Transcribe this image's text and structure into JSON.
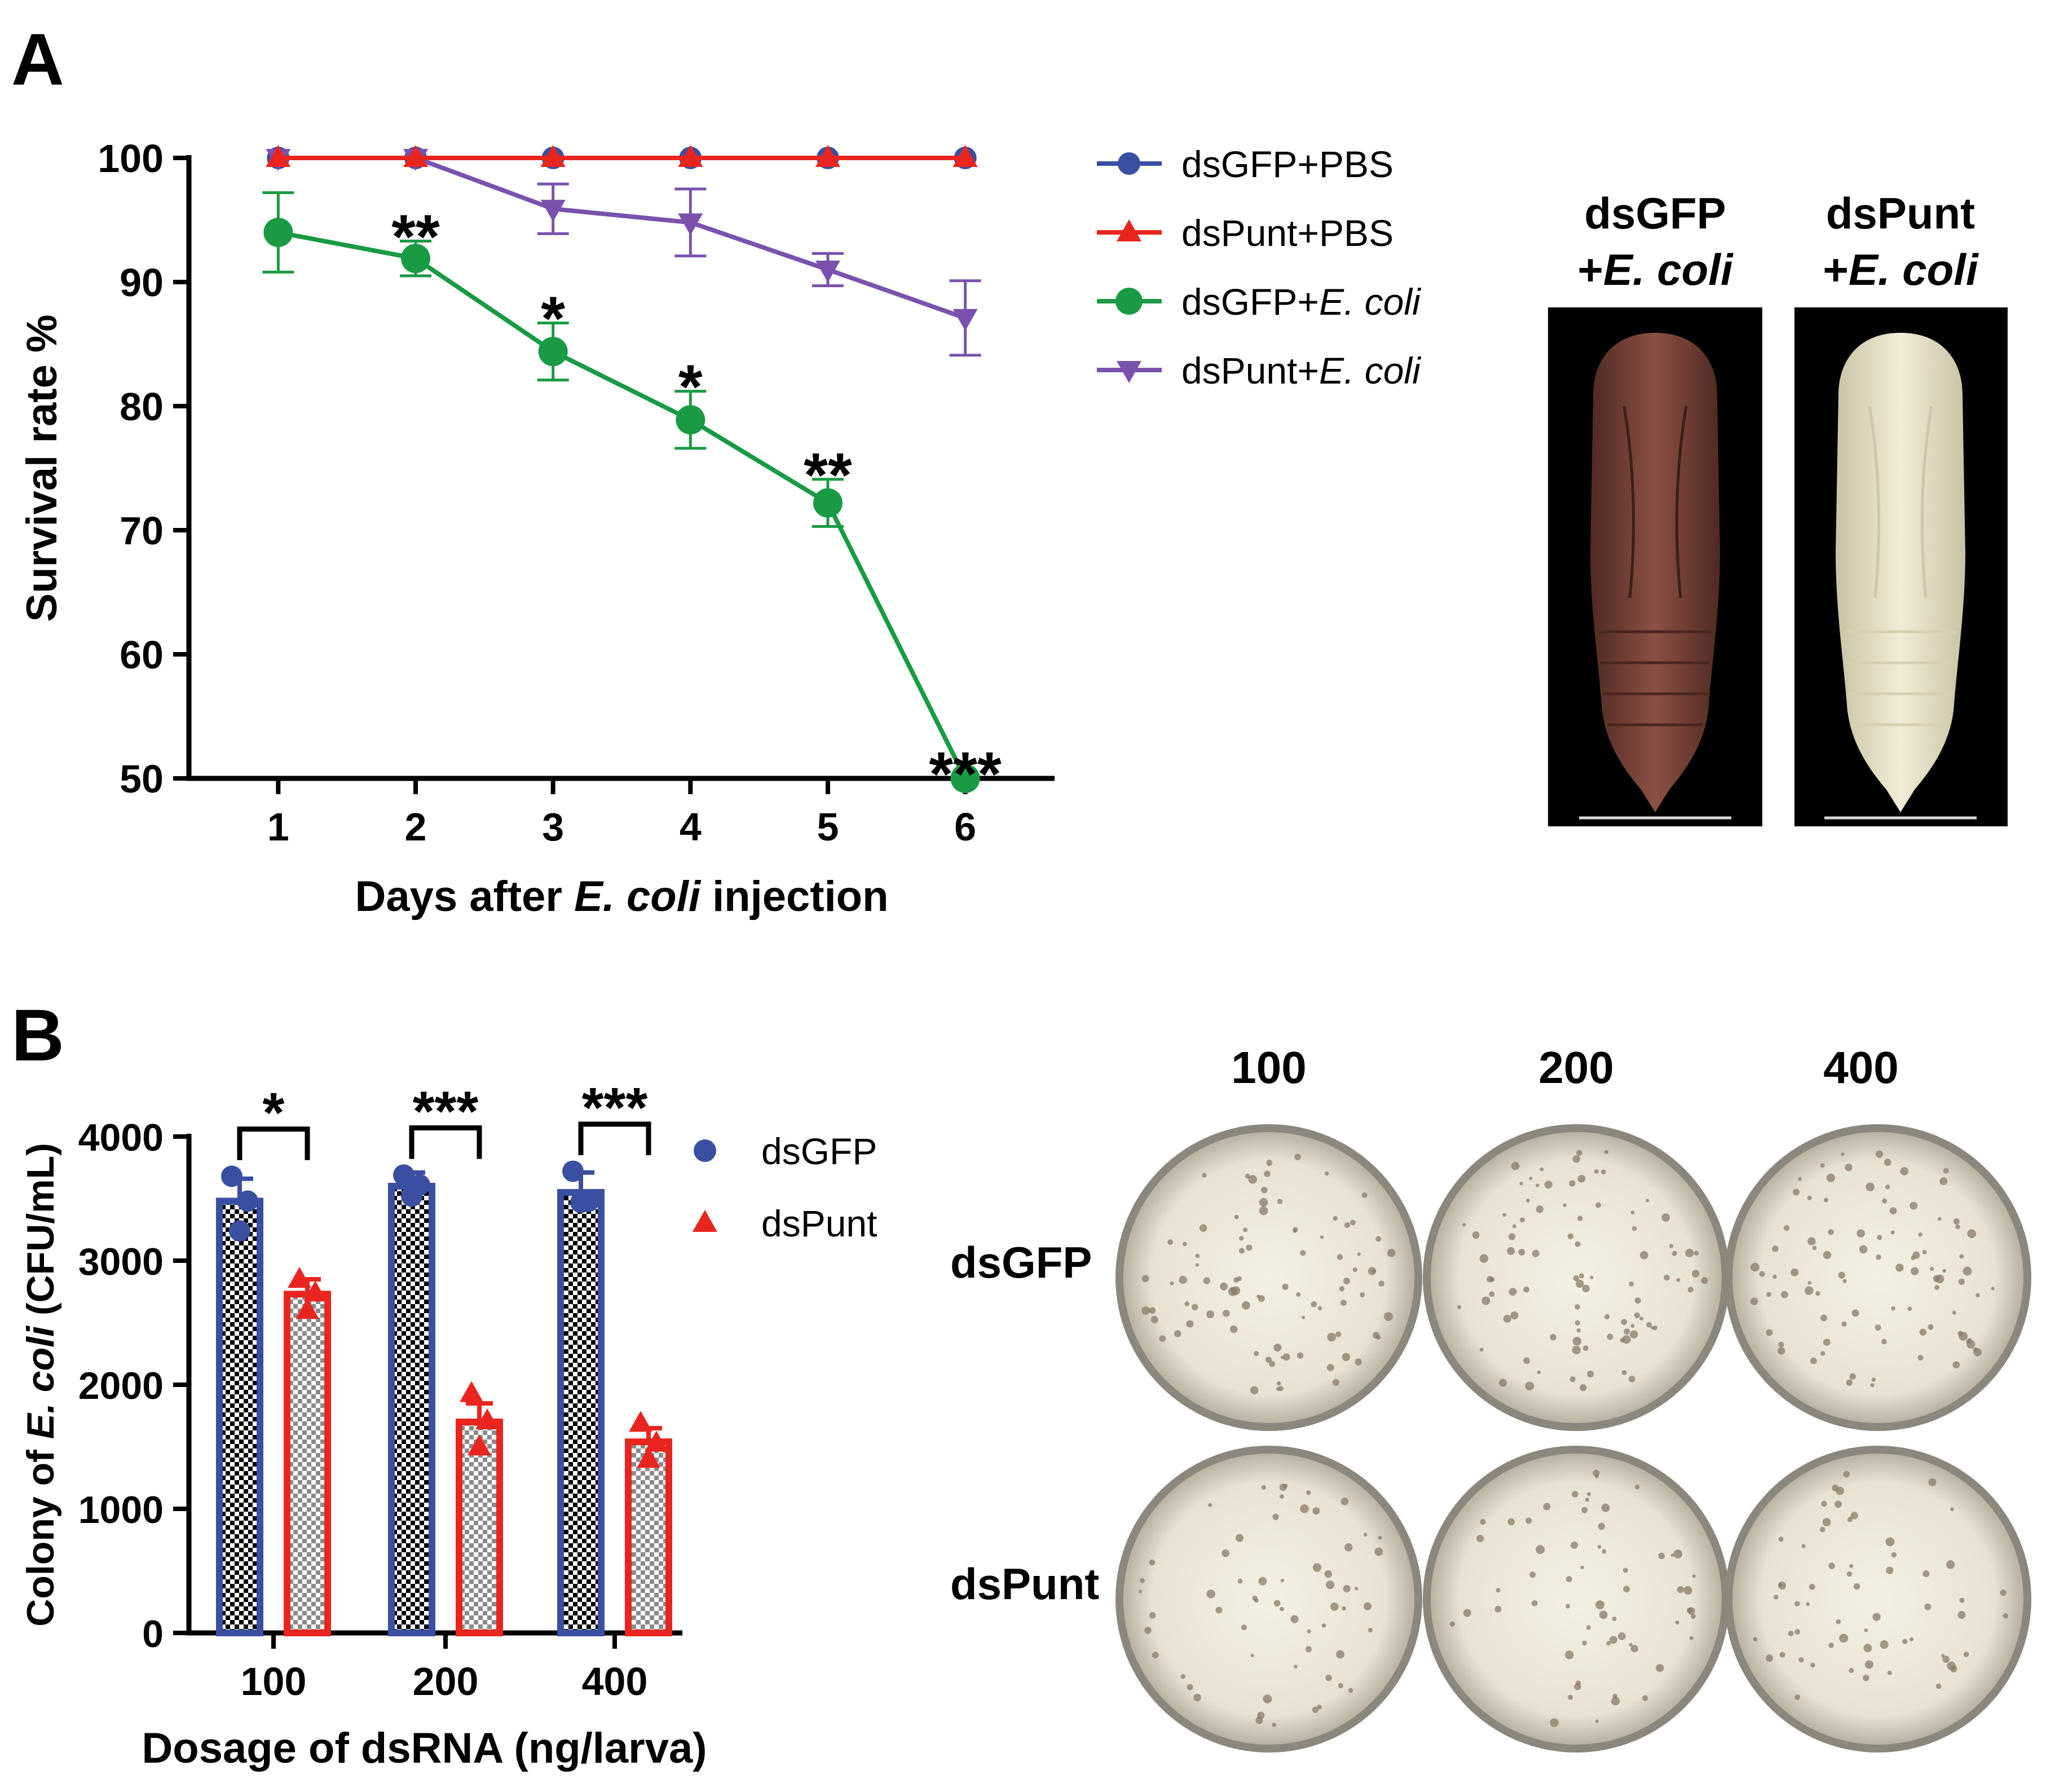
{
  "panel_a": {
    "label": "A",
    "image_labels": {
      "left_line1": "dsGFP",
      "left_line2_prefix": "+",
      "left_line2_italic": "E. coli",
      "right_line1": "dsPunt",
      "right_line2_prefix": "+",
      "right_line2_italic": "E. coli"
    }
  },
  "panel_b": {
    "label": "B",
    "plates": {
      "columns": [
        "100",
        "200",
        "400"
      ],
      "rows": [
        "dsGFP",
        "dsPunt"
      ]
    }
  },
  "colors": {
    "blue": "#3a4fa0",
    "red": "#e8261f",
    "green": "#1a9a44",
    "purple": "#7a52ad"
  },
  "chart_data": [
    {
      "type": "line",
      "title": "",
      "xlabel_parts": {
        "pre": "Days after ",
        "italic": "E. coli",
        "post": " injection"
      },
      "ylabel": "Survival rate %",
      "x": [
        1,
        2,
        3,
        4,
        5,
        6
      ],
      "xlim": [
        0.35,
        6.65
      ],
      "ylim": [
        50,
        100
      ],
      "yticks": [
        50,
        60,
        70,
        80,
        90,
        100
      ],
      "legend_position": "right",
      "series": [
        {
          "name_plain": "dsGFP+PBS",
          "name_italic": "",
          "marker": "circle",
          "color": "#3a4fa0",
          "values": [
            100,
            100,
            100,
            100,
            100,
            100
          ],
          "errors": [
            0,
            0,
            0,
            0,
            0,
            0
          ]
        },
        {
          "name_plain": "dsPunt+PBS",
          "name_italic": "",
          "marker": "triangle-up",
          "color": "#e8261f",
          "values": [
            100,
            100,
            100,
            100,
            100,
            100
          ],
          "errors": [
            0,
            0,
            0,
            0,
            0,
            0
          ]
        },
        {
          "name_plain": "dsGFP+",
          "name_italic": "E. coli",
          "marker": "circle",
          "color": "#1a9a44",
          "values": [
            94,
            91.9,
            84.4,
            78.9,
            72.2,
            50
          ],
          "errors": [
            3.2,
            1.4,
            2.3,
            2.3,
            1.9,
            0
          ]
        },
        {
          "name_plain": "dsPunt+",
          "name_italic": "E. coli",
          "marker": "triangle-down",
          "color": "#7a52ad",
          "values": [
            100,
            100,
            95.9,
            94.8,
            91,
            87.1
          ],
          "errors": [
            0,
            0,
            2,
            2.7,
            1.3,
            3
          ]
        }
      ],
      "significance": [
        {
          "x": 2,
          "label": "**"
        },
        {
          "x": 3,
          "label": "*"
        },
        {
          "x": 4,
          "label": "*"
        },
        {
          "x": 5,
          "label": "**"
        },
        {
          "x": 6,
          "label": "***"
        }
      ]
    },
    {
      "type": "bar",
      "title": "",
      "xlabel": "Dosage of dsRNA (ng/larva)",
      "ylabel_parts": {
        "pre": "Colony of ",
        "italic": "E. coli",
        "post": " (CFU/mL)"
      },
      "categories": [
        "100",
        "200",
        "400"
      ],
      "ylim": [
        0,
        4000
      ],
      "yticks": [
        0,
        1000,
        2000,
        3000,
        4000
      ],
      "legend_position": "top-right",
      "series": [
        {
          "name": "dsGFP",
          "marker": "circle",
          "color": "#3a4fa0",
          "values": [
            3480,
            3600,
            3550
          ],
          "errors": [
            180,
            110,
            160
          ],
          "points": [
            [
              3680,
              3480,
              3240
            ],
            [
              3690,
              3610,
              3520
            ],
            [
              3720,
              3480,
              3470
            ]
          ]
        },
        {
          "name": "dsPunt",
          "marker": "triangle-up",
          "color": "#e8261f",
          "values": [
            2730,
            1700,
            1540
          ],
          "errors": [
            120,
            150,
            110
          ],
          "points": [
            [
              2850,
              2740,
              2600
            ],
            [
              1930,
              1710,
              1500
            ],
            [
              1690,
              1530,
              1400
            ]
          ]
        }
      ],
      "significance": [
        {
          "category": "100",
          "label": "*"
        },
        {
          "category": "200",
          "label": "***"
        },
        {
          "category": "400",
          "label": "***"
        }
      ]
    }
  ]
}
